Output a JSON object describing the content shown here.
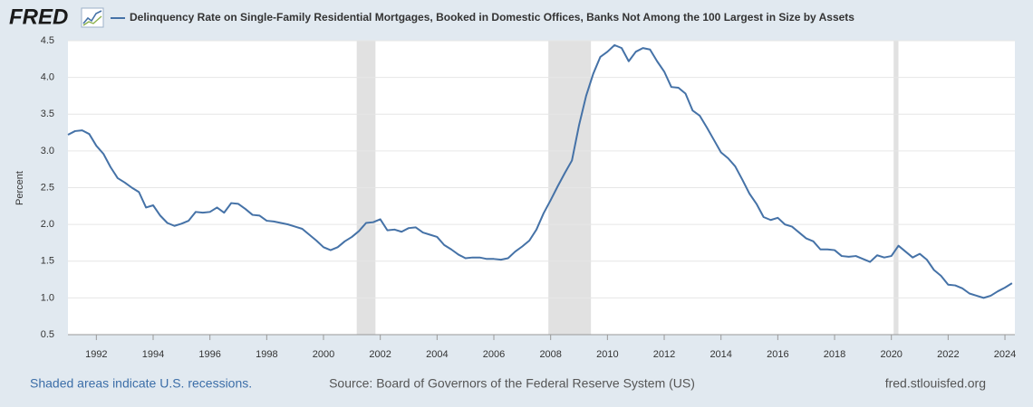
{
  "chart_data": {
    "type": "line",
    "logo": "FRED",
    "y_label": "Percent",
    "recession_note": "Shaded areas indicate U.S. recessions.",
    "source": "Source: Board of Governors of the Federal Reserve System (US)",
    "site": "fred.stlouisfed.org",
    "xlim": [
      1991,
      2024.35
    ],
    "xticks": [
      1992,
      1994,
      1996,
      1998,
      2000,
      2002,
      2004,
      2006,
      2008,
      2010,
      2012,
      2014,
      2016,
      2018,
      2020,
      2022,
      2024
    ],
    "ylim": [
      0.5,
      4.5
    ],
    "yticks": [
      0.5,
      {
        "value": 1,
        "label": "1.0"
      },
      1.5,
      {
        "value": 2,
        "label": "2.0"
      },
      2.5,
      {
        "value": 3,
        "label": "3.0"
      },
      3.5,
      {
        "value": 4,
        "label": "4.0"
      },
      4.5
    ],
    "grid": true,
    "recession_color": "#e1e1e1",
    "recessions": [
      [
        2001.17,
        2001.83
      ],
      [
        2007.92,
        2009.42
      ],
      [
        2020.08,
        2020.25
      ]
    ],
    "x": [
      1991,
      1991.25,
      1991.5,
      1991.75,
      1992,
      1992.25,
      1992.5,
      1992.75,
      1993,
      1993.25,
      1993.5,
      1993.75,
      1994,
      1994.25,
      1994.5,
      1994.75,
      1995,
      1995.25,
      1995.5,
      1995.75,
      1996,
      1996.25,
      1996.5,
      1996.75,
      1997,
      1997.25,
      1997.5,
      1997.75,
      1998,
      1998.25,
      1998.5,
      1998.75,
      1999,
      1999.25,
      1999.5,
      1999.75,
      2000,
      2000.25,
      2000.5,
      2000.75,
      2001,
      2001.25,
      2001.5,
      2001.75,
      2002,
      2002.25,
      2002.5,
      2002.75,
      2003,
      2003.25,
      2003.5,
      2003.75,
      2004,
      2004.25,
      2004.5,
      2004.75,
      2005,
      2005.25,
      2005.5,
      2005.75,
      2006,
      2006.25,
      2006.5,
      2006.75,
      2007,
      2007.25,
      2007.5,
      2007.75,
      2008,
      2008.25,
      2008.5,
      2008.75,
      2009,
      2009.25,
      2009.5,
      2009.75,
      2010,
      2010.25,
      2010.5,
      2010.75,
      2011,
      2011.25,
      2011.5,
      2011.75,
      2012,
      2012.25,
      2012.5,
      2012.75,
      2013,
      2013.25,
      2013.5,
      2013.75,
      2014,
      2014.25,
      2014.5,
      2014.75,
      2015,
      2015.25,
      2015.5,
      2015.75,
      2016,
      2016.25,
      2016.5,
      2016.75,
      2017,
      2017.25,
      2017.5,
      2017.75,
      2018,
      2018.25,
      2018.5,
      2018.75,
      2019,
      2019.25,
      2019.5,
      2019.75,
      2020,
      2020.25,
      2020.5,
      2020.75,
      2021,
      2021.25,
      2021.5,
      2021.75,
      2022,
      2022.25,
      2022.5,
      2022.75,
      2023,
      2023.25,
      2023.5,
      2023.75,
      2024,
      2024.25
    ],
    "series": [
      {
        "name": "Delinquency Rate on Single-Family Residential Mortgages, Booked in Domestic Offices, Banks Not Among the 100 Largest in Size by Assets",
        "color": "#4572a7",
        "values": [
          3.22,
          3.27,
          3.28,
          3.23,
          3.07,
          2.96,
          2.78,
          2.63,
          2.57,
          2.5,
          2.44,
          2.23,
          2.26,
          2.12,
          2.02,
          1.98,
          2.01,
          2.05,
          2.17,
          2.16,
          2.17,
          2.23,
          2.16,
          2.29,
          2.28,
          2.21,
          2.13,
          2.12,
          2.05,
          2.04,
          2.02,
          2.0,
          1.97,
          1.94,
          1.86,
          1.78,
          1.69,
          1.65,
          1.69,
          1.77,
          1.83,
          1.91,
          2.02,
          2.03,
          2.07,
          1.92,
          1.93,
          1.9,
          1.95,
          1.96,
          1.89,
          1.86,
          1.83,
          1.72,
          1.66,
          1.59,
          1.54,
          1.55,
          1.55,
          1.53,
          1.53,
          1.52,
          1.54,
          1.63,
          1.7,
          1.78,
          1.93,
          2.15,
          2.33,
          2.52,
          2.7,
          2.87,
          3.35,
          3.75,
          4.05,
          4.28,
          4.35,
          4.44,
          4.4,
          4.22,
          4.35,
          4.4,
          4.38,
          4.22,
          4.08,
          3.87,
          3.86,
          3.78,
          3.55,
          3.48,
          3.32,
          3.15,
          2.98,
          2.9,
          2.79,
          2.61,
          2.42,
          2.28,
          2.1,
          2.06,
          2.09,
          2.0,
          1.97,
          1.89,
          1.81,
          1.77,
          1.66,
          1.66,
          1.65,
          1.57,
          1.56,
          1.57,
          1.53,
          1.49,
          1.58,
          1.55,
          1.57,
          1.71,
          1.63,
          1.55,
          1.6,
          1.52,
          1.38,
          1.3,
          1.18,
          1.17,
          1.13,
          1.06,
          1.03,
          1.0,
          1.03,
          1.09,
          1.14,
          1.2
        ]
      }
    ]
  }
}
